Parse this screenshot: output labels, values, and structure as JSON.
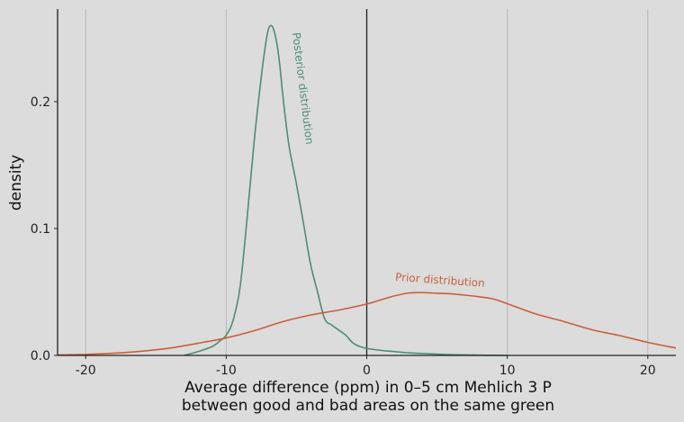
{
  "chart_data": {
    "type": "line",
    "xlabel_line1": "Average difference (ppm) in 0–5 cm Mehlich 3 P",
    "xlabel_line2": "between good and bad areas on the same green",
    "ylabel": "density",
    "xlim": [
      -22,
      22
    ],
    "ylim": [
      0,
      0.273
    ],
    "x_ticks": [
      -20,
      -10,
      0,
      10,
      20
    ],
    "x_tick_labels": [
      "-20",
      "-10",
      "0",
      "10",
      "20"
    ],
    "y_ticks": [
      0,
      0.1,
      0.2
    ],
    "y_tick_labels": [
      "0.0",
      "0.1",
      "0.2"
    ],
    "grid": "vertical",
    "legend": "none",
    "reference_line_x": 0,
    "series": [
      {
        "name": "Posterior distribution",
        "color": "#4a8f72",
        "x": [
          -13,
          -12,
          -11,
          -10.5,
          -10,
          -9.5,
          -9,
          -8.5,
          -8,
          -7.5,
          -7.2,
          -7,
          -6.8,
          -6.6,
          -6.4,
          -6.2,
          -6,
          -5.8,
          -5.5,
          -5,
          -4.5,
          -4,
          -3.5,
          -3,
          -2.5,
          -2,
          -1.5,
          -1,
          -0.5,
          0,
          1,
          2,
          3,
          4,
          5,
          6,
          7,
          8,
          9,
          10
        ],
        "y": [
          0,
          0.003,
          0.007,
          0.011,
          0.016,
          0.028,
          0.055,
          0.11,
          0.17,
          0.22,
          0.245,
          0.257,
          0.26,
          0.256,
          0.246,
          0.23,
          0.208,
          0.188,
          0.163,
          0.135,
          0.104,
          0.072,
          0.05,
          0.029,
          0.024,
          0.02,
          0.016,
          0.01,
          0.007,
          0.0055,
          0.004,
          0.003,
          0.002,
          0.0015,
          0.001,
          0.0006,
          0.0004,
          0.0002,
          0.0001,
          0
        ]
      },
      {
        "name": "Prior distribution",
        "color": "#c9603a",
        "x": [
          -22,
          -20,
          -18,
          -16,
          -14,
          -12,
          -10,
          -8,
          -6,
          -4,
          -2,
          0,
          1,
          2,
          3,
          4,
          5,
          6,
          7,
          8,
          9,
          10,
          12,
          14,
          16,
          18,
          20,
          22
        ],
        "y": [
          0.0003,
          0.0008,
          0.0017,
          0.0033,
          0.0058,
          0.0096,
          0.0138,
          0.0195,
          0.0265,
          0.0318,
          0.0357,
          0.0405,
          0.0438,
          0.047,
          0.0492,
          0.0495,
          0.049,
          0.0485,
          0.0475,
          0.0462,
          0.0445,
          0.0408,
          0.0328,
          0.0268,
          0.0203,
          0.0156,
          0.0103,
          0.0058
        ]
      }
    ],
    "annotations": [
      {
        "text": "Posterior distribution",
        "x": -4.8,
        "y": 0.21,
        "angle": 83,
        "color": "#4a8f72"
      },
      {
        "text": "Prior distribution",
        "x": 5.2,
        "y": 0.0565,
        "angle": 4,
        "color": "#c9603a"
      }
    ]
  }
}
